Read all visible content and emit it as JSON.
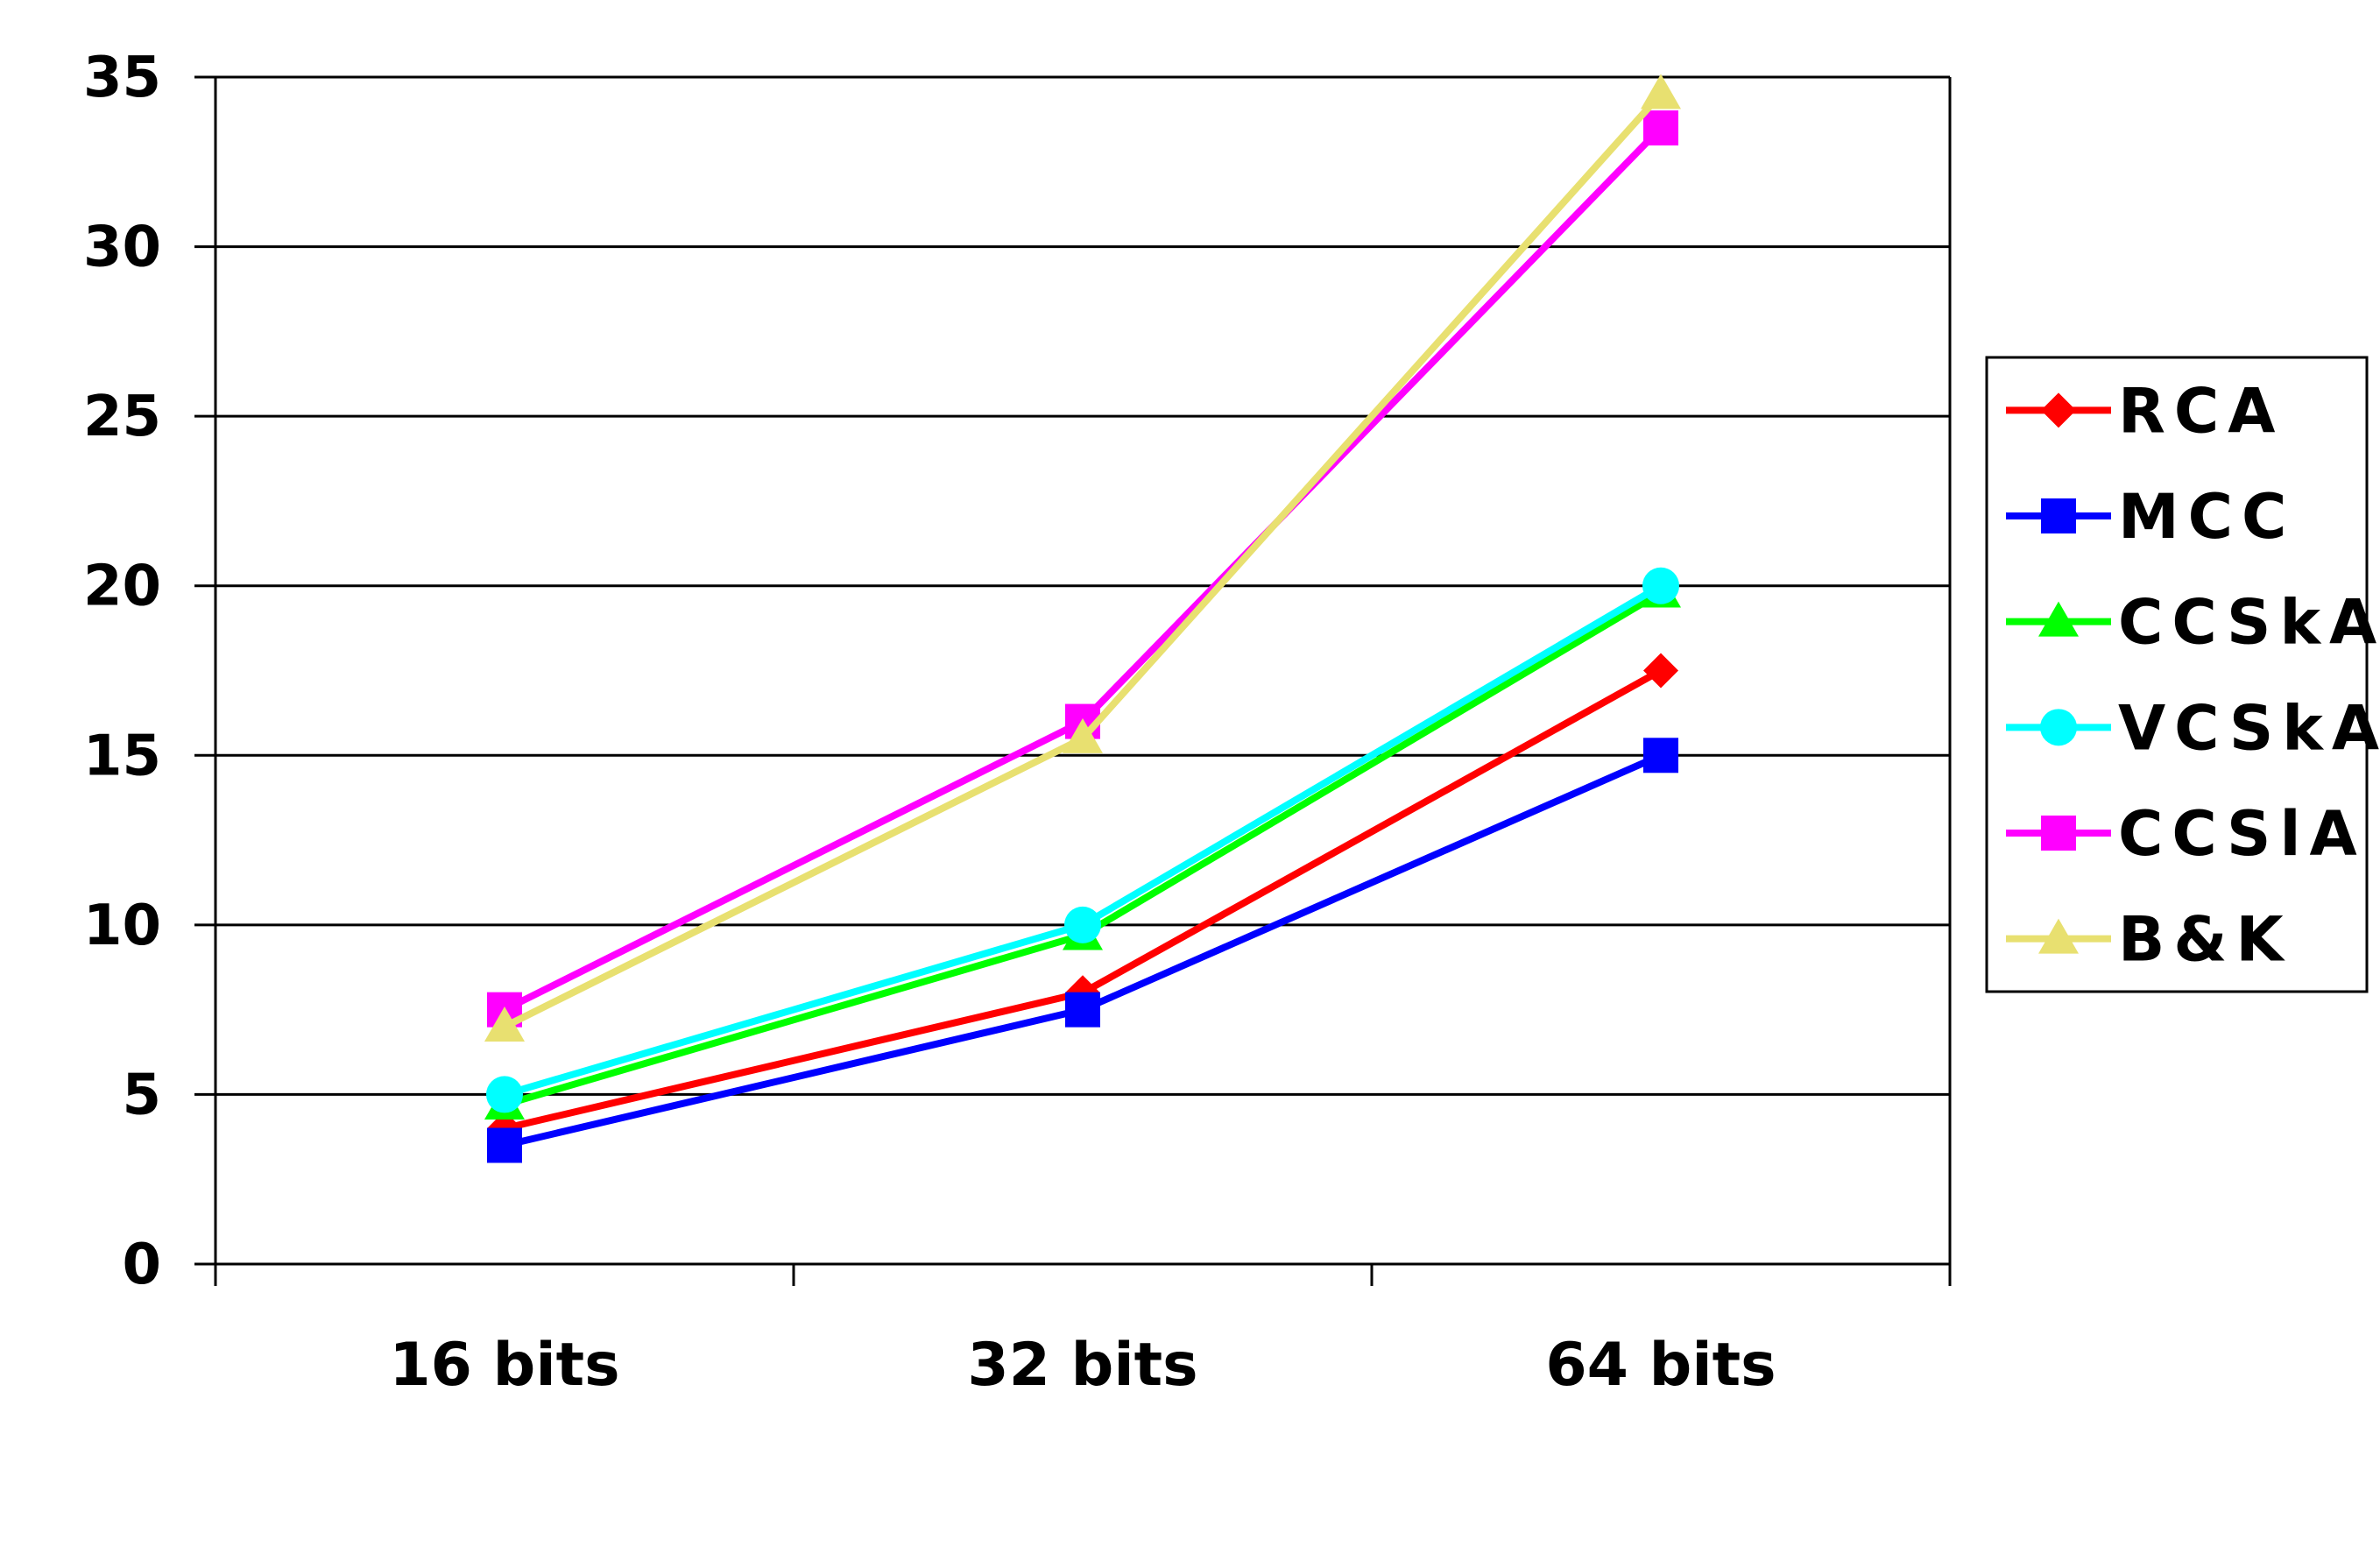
{
  "chart_data": {
    "type": "line",
    "title": "",
    "xlabel": "",
    "ylabel": "",
    "categories": [
      "16 bits",
      "32 bits",
      "64 bits"
    ],
    "ylim": [
      0,
      35
    ],
    "yticks": [
      0,
      5,
      10,
      15,
      20,
      25,
      30,
      35
    ],
    "grid": true,
    "legend_position": "right",
    "series": [
      {
        "name": "RCA",
        "color": "#FF0000",
        "marker": "diamond",
        "values": [
          4.0,
          8.0,
          17.5
        ]
      },
      {
        "name": "MCC",
        "color": "#0000FF",
        "marker": "square",
        "values": [
          3.5,
          7.5,
          15.0
        ]
      },
      {
        "name": "CCSkA",
        "color": "#00FF00",
        "marker": "triangle",
        "values": [
          4.7,
          9.7,
          19.8
        ]
      },
      {
        "name": "VCSkA",
        "color": "#00FFFF",
        "marker": "circle",
        "values": [
          5.0,
          10.0,
          20.0
        ]
      },
      {
        "name": "CCSlA",
        "color": "#FF00FF",
        "marker": "square",
        "values": [
          7.5,
          16.0,
          33.5
        ]
      },
      {
        "name": "B&K",
        "color": "#E8E070",
        "marker": "triangle",
        "values": [
          7.0,
          15.5,
          34.5
        ]
      }
    ]
  }
}
